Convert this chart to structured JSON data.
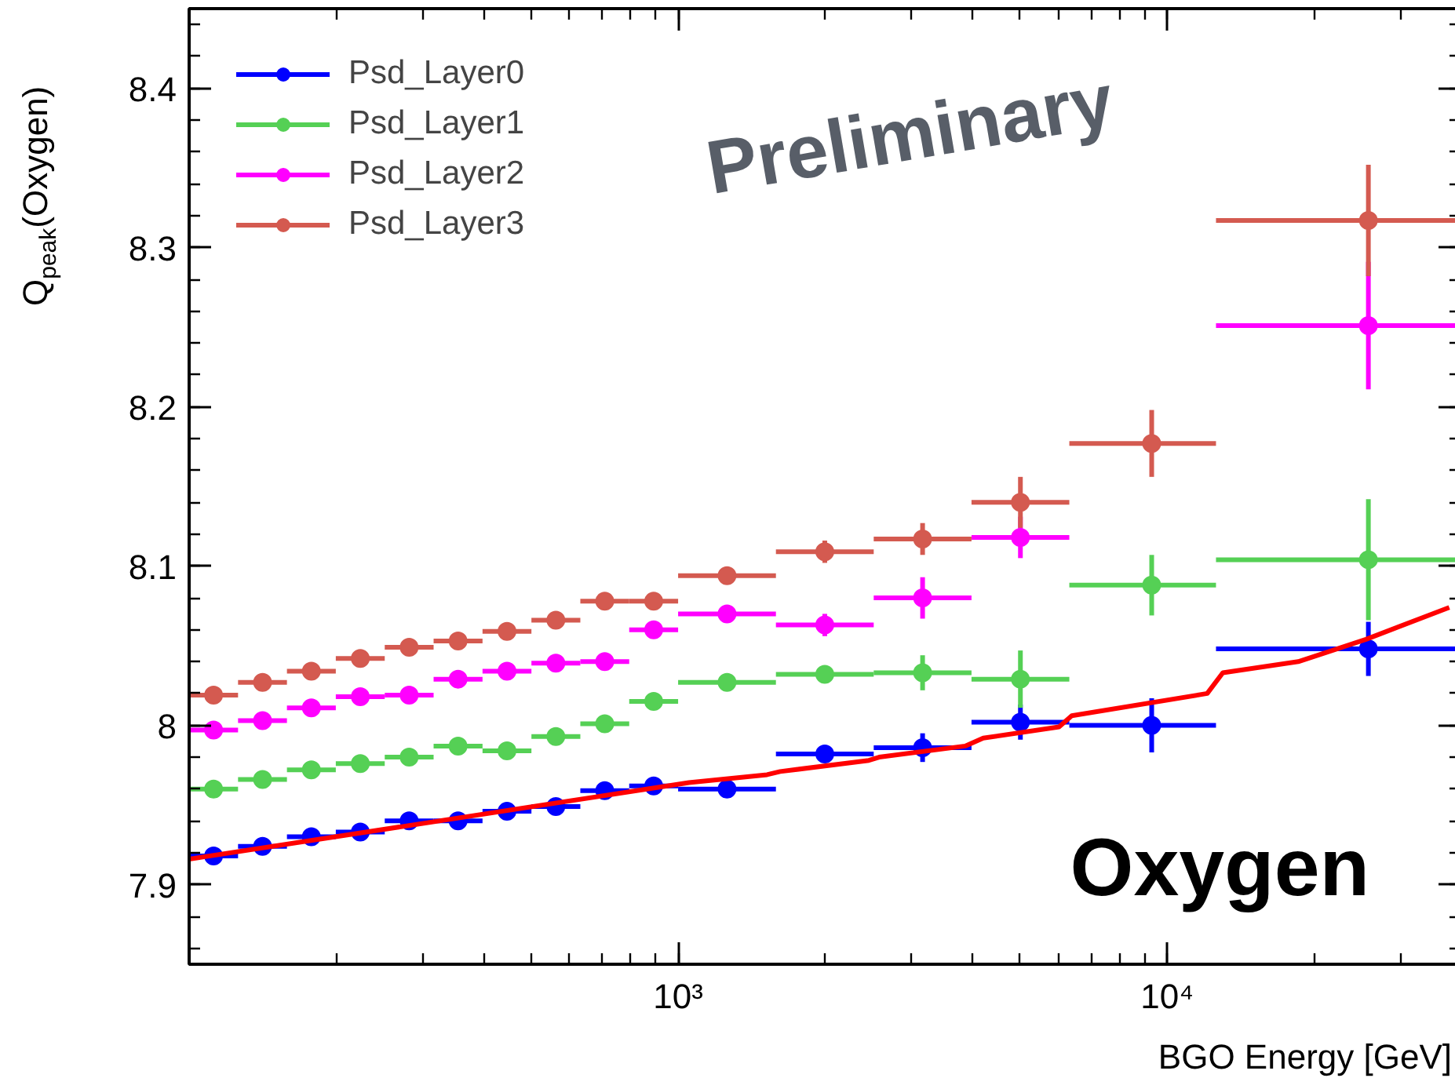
{
  "chart_data": {
    "type": "scatter",
    "xlabel": "BGO Energy [GeV]",
    "ylabel": "Q$_{peak}$(Oxygen)",
    "x": [
      112.2,
      141.3,
      177.8,
      223.9,
      281.8,
      354.8,
      446.7,
      562.3,
      707.9,
      891.3,
      1259,
      1995,
      3162,
      5012,
      9300,
      25800
    ],
    "series": [
      {
        "name": "Psd_Layer0",
        "color": "#0000ff",
        "values": [
          7.918,
          7.924,
          7.93,
          7.933,
          7.94,
          7.94,
          7.946,
          7.949,
          7.959,
          7.962,
          7.96,
          7.982,
          7.986,
          8.002,
          8.0,
          8.048
        ],
        "errors": [
          null,
          null,
          null,
          null,
          null,
          null,
          null,
          null,
          null,
          null,
          null,
          null,
          0.009,
          0.011,
          0.017,
          0.017
        ],
        "xerrors": [
          [
            100,
            125.9
          ],
          [
            125.9,
            158.5
          ],
          [
            158.5,
            199.5
          ],
          [
            199.5,
            251.2
          ],
          [
            251.2,
            316.2
          ],
          [
            316.2,
            398.1
          ],
          [
            398.1,
            501.2
          ],
          [
            501.2,
            631
          ],
          [
            631,
            794.3
          ],
          [
            794.3,
            1000
          ],
          [
            1000,
            1585
          ],
          [
            1585,
            2512
          ],
          [
            2512,
            3981
          ],
          [
            3981,
            6310
          ],
          [
            6310,
            12589
          ],
          [
            12589,
            39811
          ]
        ]
      },
      {
        "name": "Psd_Layer1",
        "color": "#55d055",
        "values": [
          7.96,
          7.966,
          7.972,
          7.976,
          7.98,
          7.987,
          7.984,
          7.993,
          8.001,
          8.015,
          8.027,
          8.032,
          8.033,
          8.029,
          8.088,
          8.104
        ],
        "errors": [
          null,
          null,
          null,
          null,
          null,
          null,
          null,
          null,
          null,
          null,
          null,
          0.005,
          0.011,
          0.018,
          0.019,
          0.038
        ],
        "xerrors": [
          [
            100,
            125.9
          ],
          [
            125.9,
            158.5
          ],
          [
            158.5,
            199.5
          ],
          [
            199.5,
            251.2
          ],
          [
            251.2,
            316.2
          ],
          [
            316.2,
            398.1
          ],
          [
            398.1,
            501.2
          ],
          [
            501.2,
            631
          ],
          [
            631,
            794.3
          ],
          [
            794.3,
            1000
          ],
          [
            1000,
            1585
          ],
          [
            1585,
            2512
          ],
          [
            2512,
            3981
          ],
          [
            3981,
            6310
          ],
          [
            6310,
            12589
          ],
          [
            12589,
            39811
          ]
        ]
      },
      {
        "name": "Psd_Layer2",
        "color": "#ff00ff",
        "values": [
          7.997,
          8.003,
          8.011,
          8.018,
          8.019,
          8.029,
          8.034,
          8.039,
          8.04,
          8.06,
          8.07,
          8.063,
          8.08,
          8.118,
          null,
          8.251
        ],
        "errors": [
          null,
          null,
          null,
          null,
          null,
          null,
          null,
          null,
          null,
          null,
          null,
          0.007,
          0.013,
          0.013,
          null,
          0.04
        ],
        "xerrors": [
          [
            100,
            125.9
          ],
          [
            125.9,
            158.5
          ],
          [
            158.5,
            199.5
          ],
          [
            199.5,
            251.2
          ],
          [
            251.2,
            316.2
          ],
          [
            316.2,
            398.1
          ],
          [
            398.1,
            501.2
          ],
          [
            501.2,
            631
          ],
          [
            631,
            794.3
          ],
          [
            794.3,
            1000
          ],
          [
            1000,
            1585
          ],
          [
            1585,
            2512
          ],
          [
            2512,
            3981
          ],
          [
            3981,
            6310
          ],
          null,
          [
            12589,
            39811
          ]
        ]
      },
      {
        "name": "Psd_Layer3",
        "color": "#d45a50",
        "values": [
          8.019,
          8.027,
          8.034,
          8.042,
          8.049,
          8.053,
          8.059,
          8.066,
          8.078,
          8.078,
          8.094,
          8.109,
          8.117,
          8.14,
          8.177,
          8.317
        ],
        "errors": [
          null,
          null,
          null,
          null,
          null,
          null,
          null,
          null,
          null,
          null,
          null,
          0.007,
          0.01,
          0.016,
          0.021,
          0.035
        ],
        "xerrors": [
          [
            100,
            125.9
          ],
          [
            125.9,
            158.5
          ],
          [
            158.5,
            199.5
          ],
          [
            199.5,
            251.2
          ],
          [
            251.2,
            316.2
          ],
          [
            316.2,
            398.1
          ],
          [
            398.1,
            501.2
          ],
          [
            501.2,
            631
          ],
          [
            631,
            794.3
          ],
          [
            794.3,
            1000
          ],
          [
            1000,
            1585
          ],
          [
            1585,
            2512
          ],
          [
            2512,
            3981
          ],
          [
            3981,
            6310
          ],
          [
            6310,
            12589
          ],
          [
            12589,
            39811
          ]
        ]
      },
      {
        "type": "line",
        "color": "#ff0000",
        "marker": "none",
        "x": [
          100,
          1052,
          1520,
          1617,
          2455,
          2577,
          3863,
          4207,
          6011,
          6383,
          12080,
          13000,
          18540,
          25520,
          37760
        ],
        "values": [
          7.916,
          7.964,
          7.969,
          7.971,
          7.978,
          7.98,
          7.987,
          7.992,
          7.999,
          8.006,
          8.02,
          8.033,
          8.04,
          8.054,
          8.074
        ]
      }
    ],
    "xlim": [
      100,
      39811
    ],
    "xticks": [
      {
        "value": 1000,
        "label": "10³"
      },
      {
        "value": 10000,
        "label": "10⁴"
      }
    ],
    "ylim": [
      7.85,
      8.45
    ],
    "yticks": [
      7.9,
      8,
      8.1,
      8.2,
      8.3,
      8.4
    ],
    "log": "x",
    "grid": false,
    "legend": "top left",
    "marker": "circle",
    "annotations": [
      "Preliminary",
      "Oxygen"
    ]
  }
}
